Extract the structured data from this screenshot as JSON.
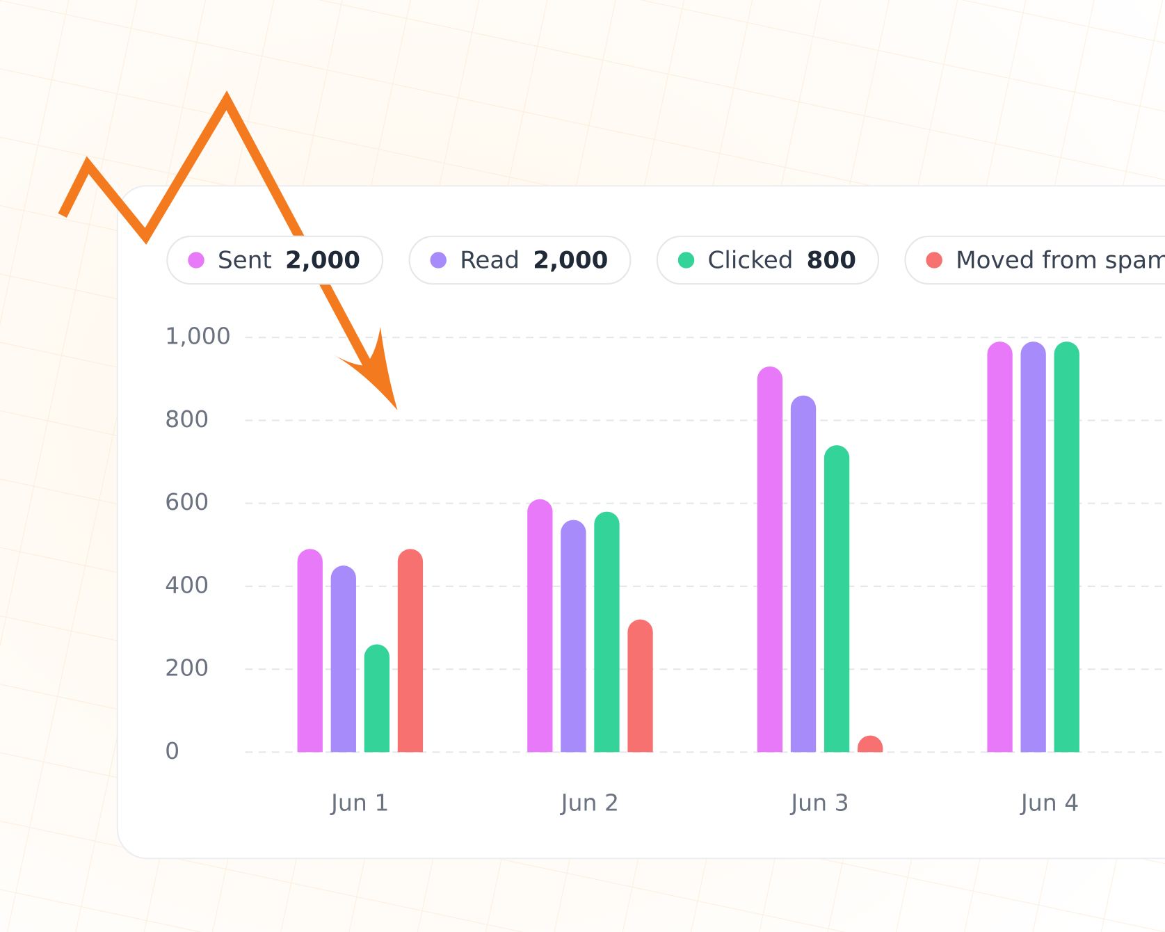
{
  "chart_data": {
    "type": "bar",
    "categories": [
      "Jun 1",
      "Jun 2",
      "Jun 3",
      "Jun 4"
    ],
    "series": [
      {
        "name": "Sent",
        "legend_value": "2,000",
        "color": "#e879f9",
        "values": [
          490,
          610,
          930,
          990
        ]
      },
      {
        "name": "Read",
        "legend_value": "2,000",
        "color": "#a78bfa",
        "values": [
          450,
          560,
          860,
          990
        ]
      },
      {
        "name": "Clicked",
        "legend_value": "800",
        "color": "#34d399",
        "values": [
          260,
          580,
          740,
          990
        ]
      },
      {
        "name": "Moved from spam",
        "color": "#f87171",
        "values": [
          490,
          320,
          40,
          null
        ]
      }
    ],
    "ylim": [
      0,
      1000
    ],
    "yticks": [
      0,
      200,
      400,
      600,
      800,
      {
        "value": 1000,
        "label": "1,000"
      }
    ],
    "grid": true
  }
}
